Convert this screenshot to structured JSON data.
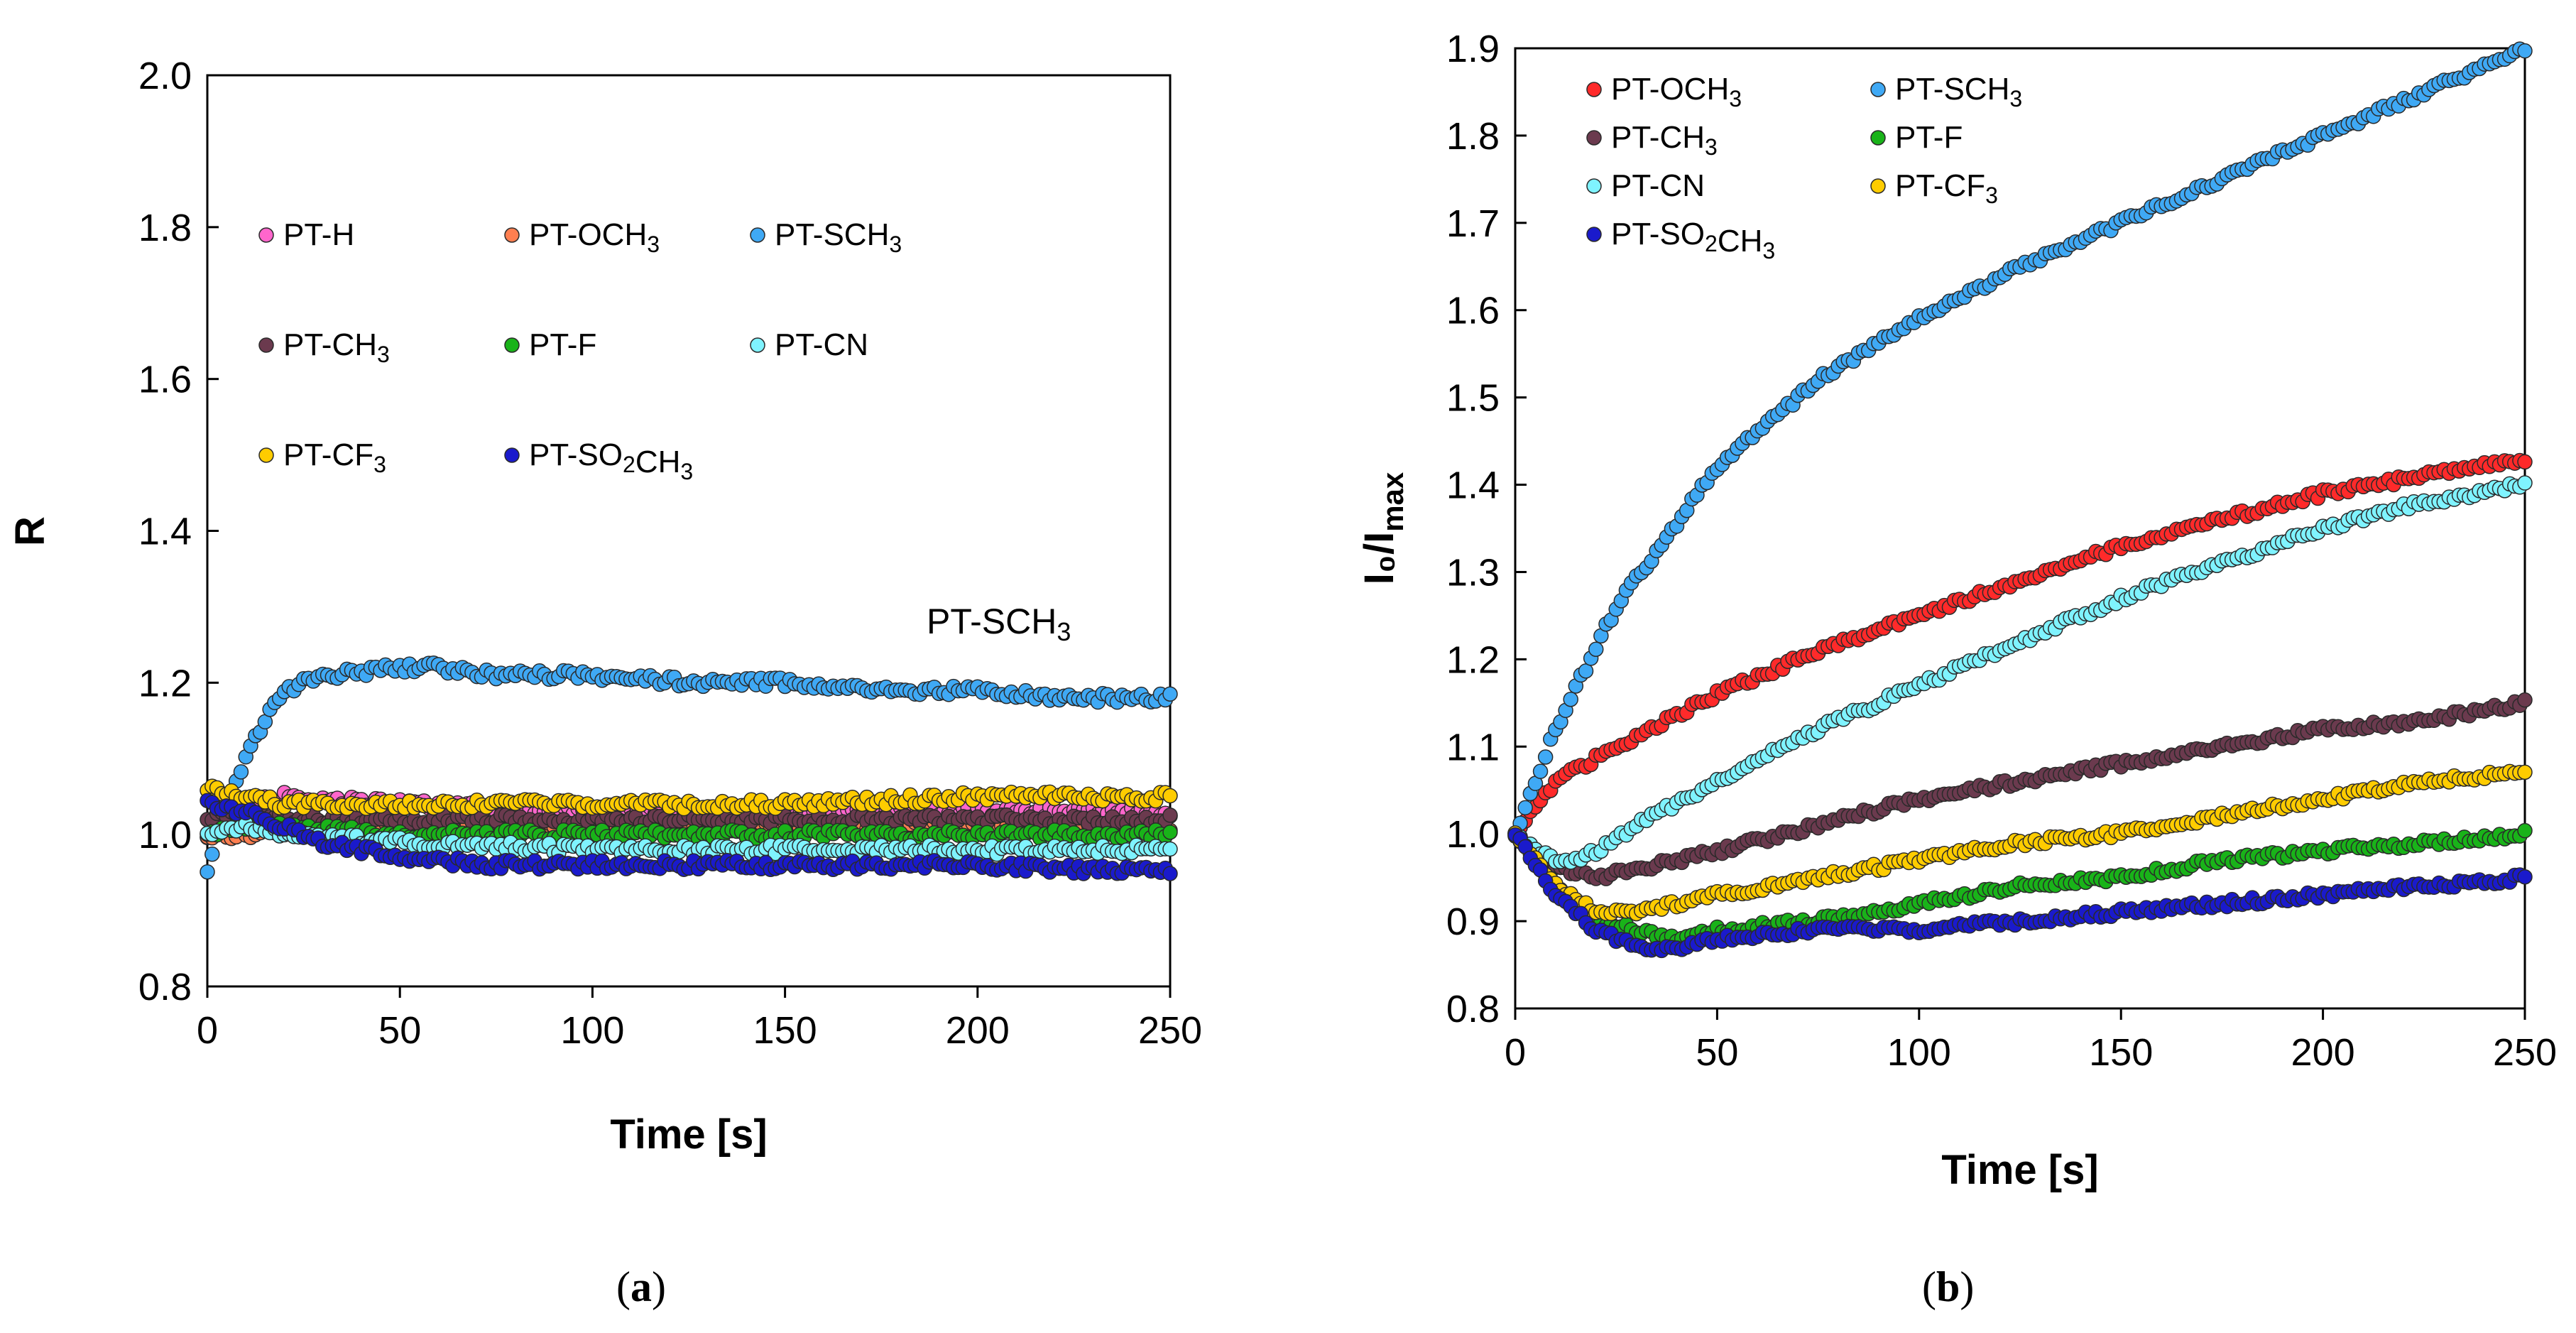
{
  "chart_data": [
    {
      "type": "scatter",
      "panel_label": "(a)",
      "panel_letter": "a",
      "xlabel": "Time [s]",
      "ylabel": "R",
      "xlim": [
        0,
        250
      ],
      "ylim": [
        0.8,
        2.0
      ],
      "xticks": [
        0,
        50,
        100,
        150,
        200,
        250
      ],
      "yticks": [
        "0.8",
        "1.0",
        "1.2",
        "1.4",
        "1.6",
        "1.8",
        "2.0"
      ],
      "annotation": "PT-SCH₃",
      "legend": [
        {
          "label": "PT-H",
          "color": "#ff66cc"
        },
        {
          "label": "PT-OCH₃",
          "color": "#ff7f50"
        },
        {
          "label": "PT-SCH₃",
          "color": "#3fa9f5"
        },
        {
          "label": "PT-CH₃",
          "color": "#6b3a4e"
        },
        {
          "label": "PT-F",
          "color": "#19b319"
        },
        {
          "label": "PT-CN",
          "color": "#7ff3ff"
        },
        {
          "label": "PT-CF₃",
          "color": "#ffcc00"
        },
        {
          "label": "PT-SO₂CH₃",
          "color": "#1a1acc"
        }
      ],
      "series": [
        {
          "name": "PT-H",
          "color": "#ff66cc",
          "x": [
            0,
            10,
            20,
            50,
            100,
            150,
            200,
            250
          ],
          "y": [
            1.0,
            1.04,
            1.05,
            1.04,
            1.03,
            1.03,
            1.03,
            1.03
          ]
        },
        {
          "name": "PT-OCH₃",
          "color": "#ff7f50",
          "x": [
            0,
            10,
            20,
            50,
            100,
            150,
            200,
            250
          ],
          "y": [
            1.0,
            1.0,
            1.01,
            1.01,
            1.01,
            1.01,
            1.01,
            1.01
          ]
        },
        {
          "name": "PT-SCH₃",
          "color": "#3fa9f5",
          "x": [
            0,
            5,
            10,
            15,
            20,
            30,
            50,
            60,
            75,
            100,
            125,
            150,
            175,
            200,
            225,
            250
          ],
          "y": [
            0.95,
            1.04,
            1.1,
            1.15,
            1.19,
            1.21,
            1.22,
            1.22,
            1.21,
            1.21,
            1.2,
            1.2,
            1.19,
            1.19,
            1.18,
            1.18
          ]
        },
        {
          "name": "PT-CH₃",
          "color": "#6b3a4e",
          "x": [
            0,
            10,
            20,
            50,
            100,
            150,
            200,
            250
          ],
          "y": [
            1.02,
            1.03,
            1.02,
            1.02,
            1.02,
            1.02,
            1.02,
            1.02
          ]
        },
        {
          "name": "PT-F",
          "color": "#19b319",
          "x": [
            0,
            10,
            20,
            50,
            100,
            150,
            200,
            250
          ],
          "y": [
            1.0,
            1.01,
            1.01,
            1.0,
            1.0,
            1.0,
            1.0,
            1.0
          ]
        },
        {
          "name": "PT-CN",
          "color": "#7ff3ff",
          "x": [
            0,
            10,
            20,
            50,
            100,
            150,
            200,
            250
          ],
          "y": [
            1.0,
            1.01,
            1.0,
            0.99,
            0.98,
            0.98,
            0.98,
            0.98
          ]
        },
        {
          "name": "PT-CF₃",
          "color": "#ffcc00",
          "x": [
            0,
            10,
            20,
            50,
            100,
            150,
            200,
            250
          ],
          "y": [
            1.06,
            1.05,
            1.04,
            1.04,
            1.04,
            1.04,
            1.05,
            1.05
          ]
        },
        {
          "name": "PT-SO₂CH₃",
          "color": "#1a1acc",
          "x": [
            0,
            10,
            20,
            30,
            50,
            75,
            100,
            150,
            200,
            250
          ],
          "y": [
            1.04,
            1.03,
            1.01,
            0.99,
            0.97,
            0.96,
            0.96,
            0.96,
            0.96,
            0.95
          ]
        }
      ]
    },
    {
      "type": "scatter",
      "panel_label": "(b)",
      "panel_letter": "b",
      "xlabel": "Time [s]",
      "ylabel": "I₀/I",
      "ylabel_sub": "max",
      "xlim": [
        0,
        250
      ],
      "ylim": [
        0.8,
        1.9
      ],
      "xticks": [
        0,
        50,
        100,
        150,
        200,
        250
      ],
      "yticks": [
        "0.8",
        "0.9",
        "1.0",
        "1.1",
        "1.2",
        "1.3",
        "1.4",
        "1.5",
        "1.6",
        "1.7",
        "1.8",
        "1.9"
      ],
      "legend": [
        {
          "label": "PT-OCH₃",
          "color": "#ff2a2a"
        },
        {
          "label": "PT-SCH₃",
          "color": "#3fa9f5"
        },
        {
          "label": "PT-CH₃",
          "color": "#6b3a4e"
        },
        {
          "label": "PT-F",
          "color": "#19b319"
        },
        {
          "label": "PT-CN",
          "color": "#7ff3ff"
        },
        {
          "label": "PT-CF₃",
          "color": "#ffcc00"
        },
        {
          "label": "PT-SO₂CH₃",
          "color": "#1a1acc"
        }
      ],
      "series": [
        {
          "name": "PT-OCH₃",
          "color": "#ff2a2a",
          "x": [
            0,
            5,
            10,
            25,
            50,
            75,
            100,
            125,
            150,
            175,
            200,
            225,
            250
          ],
          "y": [
            1.0,
            1.03,
            1.06,
            1.1,
            1.16,
            1.21,
            1.25,
            1.29,
            1.33,
            1.36,
            1.39,
            1.41,
            1.43
          ]
        },
        {
          "name": "PT-SCH₃",
          "color": "#3fa9f5",
          "x": [
            0,
            5,
            10,
            25,
            50,
            75,
            100,
            125,
            150,
            175,
            200,
            225,
            250
          ],
          "y": [
            1.0,
            1.06,
            1.12,
            1.26,
            1.42,
            1.52,
            1.59,
            1.65,
            1.7,
            1.75,
            1.8,
            1.85,
            1.9
          ]
        },
        {
          "name": "PT-CH₃",
          "color": "#6b3a4e",
          "x": [
            0,
            5,
            10,
            20,
            30,
            50,
            75,
            100,
            125,
            150,
            175,
            200,
            225,
            250
          ],
          "y": [
            1.0,
            0.97,
            0.96,
            0.95,
            0.96,
            0.98,
            1.01,
            1.04,
            1.06,
            1.08,
            1.1,
            1.12,
            1.13,
            1.15
          ]
        },
        {
          "name": "PT-F",
          "color": "#19b319",
          "x": [
            0,
            10,
            20,
            30,
            40,
            50,
            75,
            100,
            125,
            150,
            175,
            200,
            225,
            250
          ],
          "y": [
            1.0,
            0.94,
            0.9,
            0.89,
            0.88,
            0.89,
            0.9,
            0.92,
            0.94,
            0.95,
            0.97,
            0.98,
            0.99,
            1.0
          ]
        },
        {
          "name": "PT-CN",
          "color": "#7ff3ff",
          "x": [
            0,
            5,
            10,
            15,
            20,
            30,
            50,
            75,
            100,
            125,
            150,
            175,
            200,
            225,
            250
          ],
          "y": [
            1.0,
            0.98,
            0.97,
            0.97,
            0.98,
            1.01,
            1.06,
            1.12,
            1.17,
            1.22,
            1.27,
            1.31,
            1.35,
            1.38,
            1.4
          ]
        },
        {
          "name": "PT-CF₃",
          "color": "#ffcc00",
          "x": [
            0,
            10,
            20,
            30,
            50,
            75,
            100,
            125,
            150,
            175,
            200,
            225,
            250
          ],
          "y": [
            1.0,
            0.94,
            0.91,
            0.91,
            0.93,
            0.95,
            0.97,
            0.99,
            1.0,
            1.02,
            1.04,
            1.06,
            1.07
          ]
        },
        {
          "name": "PT-SO₂CH₃",
          "color": "#1a1acc",
          "x": [
            0,
            10,
            20,
            30,
            40,
            50,
            75,
            100,
            125,
            150,
            175,
            200,
            225,
            250
          ],
          "y": [
            1.0,
            0.93,
            0.89,
            0.87,
            0.87,
            0.88,
            0.89,
            0.89,
            0.9,
            0.91,
            0.92,
            0.93,
            0.94,
            0.95
          ]
        }
      ]
    }
  ]
}
